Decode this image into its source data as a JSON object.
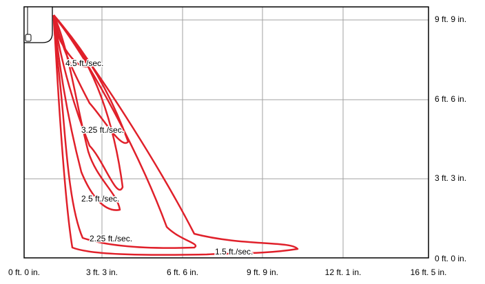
{
  "x_axis": {
    "labels": [
      "0 ft. 0 in.",
      "3 ft. 3 in.",
      "6 ft. 6 in.",
      "9 ft. 9 in.",
      "12 ft. 1 in.",
      "16 ft. 5 in."
    ]
  },
  "y_axis": {
    "labels": [
      "9 ft. 9 in.",
      "6 ft. 6 in.",
      "3 ft. 3 in.",
      "0 ft. 0 in."
    ]
  },
  "contour_labels": [
    "4.5 ft./sec.",
    "3.25 ft./sec.",
    "2.5 ft./sec.",
    "2.25 ft./sec.",
    "1.5 ft./sec."
  ]
}
